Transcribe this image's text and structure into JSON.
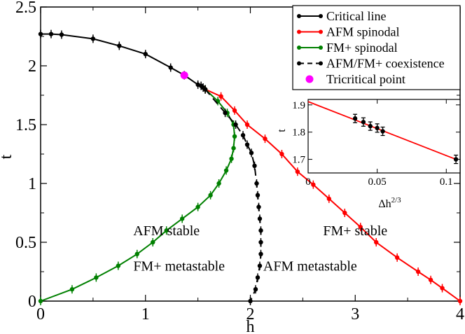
{
  "chart_data": [
    {
      "type": "line",
      "role": "main",
      "xlabel": "h",
      "ylabel": "t",
      "xlim": [
        0,
        4
      ],
      "ylim": [
        0,
        2.5
      ],
      "x_ticks": [
        0,
        1,
        2,
        3,
        4
      ],
      "y_ticks": [
        0,
        0.5,
        1,
        1.5,
        2,
        2.5
      ],
      "x_tick_labels": [
        "0",
        "1",
        "2",
        "3",
        "4"
      ],
      "y_tick_labels": [
        "0",
        "0.5",
        "1",
        "1.5",
        "2",
        "2.5"
      ],
      "grid": false,
      "legend_position": "top-right",
      "series": [
        {
          "name": "Critical line",
          "color": "#000000",
          "style": "solid",
          "points": [
            [
              0,
              2.27
            ],
            [
              0.1,
              2.27
            ],
            [
              0.2,
              2.265
            ],
            [
              0.5,
              2.23
            ],
            [
              0.75,
              2.17
            ],
            [
              1.0,
              2.1
            ],
            [
              1.24,
              1.985
            ],
            [
              1.37,
              1.92
            ],
            [
              1.5,
              1.84
            ],
            [
              1.53,
              1.83
            ],
            [
              1.55,
              1.815
            ],
            [
              1.57,
              1.8
            ]
          ]
        },
        {
          "name": "AFM spinodal",
          "color": "#ff0000",
          "style": "solid",
          "points": [
            [
              1.57,
              1.8
            ],
            [
              1.72,
              1.74
            ],
            [
              1.85,
              1.62
            ],
            [
              1.97,
              1.5
            ],
            [
              2.14,
              1.38
            ],
            [
              2.3,
              1.25
            ],
            [
              2.45,
              1.1
            ],
            [
              2.6,
              0.99
            ],
            [
              2.75,
              0.87
            ],
            [
              2.9,
              0.75
            ],
            [
              3.05,
              0.63
            ],
            [
              3.2,
              0.5
            ],
            [
              3.4,
              0.37
            ],
            [
              3.6,
              0.25
            ],
            [
              3.72,
              0.18
            ],
            [
              3.83,
              0.11
            ],
            [
              4.0,
              0.0
            ]
          ]
        },
        {
          "name": "FM+ spinodal",
          "color": "#008000",
          "style": "solid",
          "points": [
            [
              1.57,
              1.8
            ],
            [
              1.69,
              1.7
            ],
            [
              1.78,
              1.6
            ],
            [
              1.84,
              1.5
            ],
            [
              1.85,
              1.4
            ],
            [
              1.84,
              1.3
            ],
            [
              1.82,
              1.21
            ],
            [
              1.77,
              1.11
            ],
            [
              1.7,
              1.0
            ],
            [
              1.62,
              0.9
            ],
            [
              1.5,
              0.8
            ],
            [
              1.35,
              0.7
            ],
            [
              1.2,
              0.6
            ],
            [
              1.07,
              0.5
            ],
            [
              0.92,
              0.4
            ],
            [
              0.74,
              0.3
            ],
            [
              0.53,
              0.2
            ],
            [
              0.3,
              0.1
            ],
            [
              0.0,
              0.0
            ]
          ]
        },
        {
          "name": "AFM/FM+ coexistence",
          "color": "#000000",
          "style": "dashed",
          "points": [
            [
              1.57,
              1.8
            ],
            [
              1.76,
              1.6
            ],
            [
              1.86,
              1.5
            ],
            [
              1.93,
              1.41
            ],
            [
              1.97,
              1.33
            ],
            [
              2.01,
              1.26
            ],
            [
              2.04,
              1.15
            ],
            [
              2.06,
              1.0
            ],
            [
              2.07,
              0.9
            ],
            [
              2.08,
              0.8
            ],
            [
              2.09,
              0.7
            ],
            [
              2.1,
              0.6
            ],
            [
              2.1,
              0.5
            ],
            [
              2.1,
              0.4
            ],
            [
              2.09,
              0.3
            ],
            [
              2.07,
              0.2
            ],
            [
              2.05,
              0.1
            ],
            [
              2.0,
              0.0
            ]
          ]
        },
        {
          "name": "Tricritical point",
          "color": "#ff00ff",
          "style": "marker",
          "points": [
            [
              1.37,
              1.92
            ]
          ]
        }
      ],
      "annotations": [
        {
          "text": "AFM stable",
          "x": 1.2,
          "y": 0.56
        },
        {
          "text": "FM+ metastable",
          "x": 1.32,
          "y": 0.26
        },
        {
          "text": "FM+ stable",
          "x": 3.0,
          "y": 0.56
        },
        {
          "text": "AFM metastable",
          "x": 2.57,
          "y": 0.26
        }
      ]
    },
    {
      "type": "line",
      "role": "inset",
      "xlabel": "Δh",
      "xlabel_sup": "2/3",
      "ylabel": "t",
      "xlim": [
        0,
        0.11
      ],
      "ylim": [
        1.65,
        1.92
      ],
      "x_ticks": [
        0,
        0.05,
        0.1
      ],
      "y_ticks": [
        1.7,
        1.8,
        1.9
      ],
      "x_tick_labels": [
        "0",
        "0.05",
        "0.1"
      ],
      "y_tick_labels": [
        "1.7",
        "1.8",
        "1.9"
      ],
      "fit_line": {
        "color": "#ff0000",
        "points": [
          [
            0,
            1.912
          ],
          [
            0.108,
            1.698
          ]
        ]
      },
      "points": [
        [
          0.034,
          1.85
        ],
        [
          0.04,
          1.837
        ],
        [
          0.045,
          1.822
        ],
        [
          0.05,
          1.815
        ],
        [
          0.054,
          1.803
        ],
        [
          0.107,
          1.7
        ]
      ]
    }
  ]
}
